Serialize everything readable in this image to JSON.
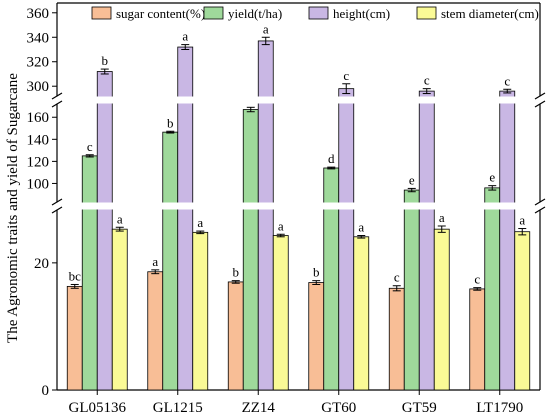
{
  "chart_data": {
    "type": "bar",
    "title": "",
    "xlabel": "",
    "ylabel": "The Agronomic traits and yield  of Sugarcane",
    "categories": [
      "GL05136",
      "GL1215",
      "ZZ14",
      "GT60",
      "GT59",
      "LT1790"
    ],
    "axis_breaks": [
      {
        "segment": "lower",
        "ylim": [
          0,
          28
        ],
        "ticks": [
          0,
          20
        ]
      },
      {
        "segment": "middle",
        "ylim": [
          85,
          172
        ],
        "ticks": [
          100,
          120,
          140,
          160
        ]
      },
      {
        "segment": "upper",
        "ylim": [
          292,
          368
        ],
        "ticks": [
          300,
          320,
          340,
          360
        ]
      }
    ],
    "legend_position": "top",
    "grid": false,
    "series": [
      {
        "name": "sugar content(%)",
        "color": "#F8BE96",
        "values": [
          16.3,
          18.6,
          17.0,
          16.9,
          16.0,
          15.9
        ],
        "errors": [
          0.3,
          0.3,
          0.2,
          0.3,
          0.4,
          0.2
        ],
        "labels": [
          "bc",
          "a",
          "b",
          "b",
          "c",
          "c"
        ]
      },
      {
        "name": "yield(t/ha)",
        "color": "#9FD99B",
        "values": [
          125,
          146.5,
          167,
          114,
          94,
          96
        ],
        "errors": [
          1,
          0.8,
          2,
          0.8,
          1.5,
          2
        ],
        "labels": [
          "c",
          "b",
          "a",
          "d",
          "e",
          "e"
        ]
      },
      {
        "name": "height(cm)",
        "color": "#C9B7E4",
        "values": [
          312,
          332,
          337,
          298,
          296,
          296
        ],
        "errors": [
          2,
          2,
          3,
          4,
          2,
          1.5
        ],
        "labels": [
          "b",
          "a",
          "a",
          "c",
          "c",
          "c"
        ]
      },
      {
        "name": "stem diameter(cm)",
        "color": "#FAFA96",
        "values": [
          25.3,
          24.8,
          24.3,
          24.1,
          25.3,
          24.9
        ],
        "errors": [
          0.3,
          0.2,
          0.2,
          0.2,
          0.5,
          0.5
        ],
        "labels": [
          "a",
          "a",
          "a",
          "a",
          "a",
          "a"
        ]
      }
    ]
  }
}
